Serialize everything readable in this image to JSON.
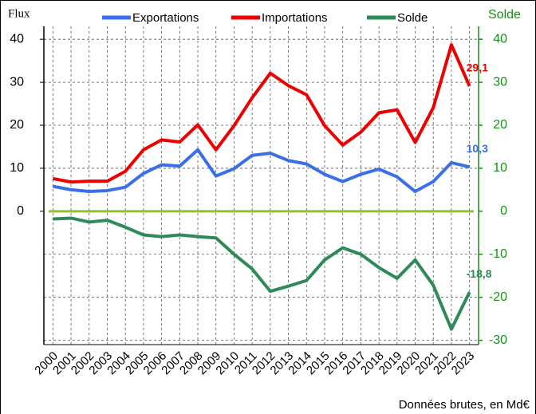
{
  "chart_data": {
    "type": "line",
    "ylabel": "Flux",
    "y2label": "Solde",
    "note": "Données brutes, en Md€",
    "categories": [
      "2000",
      "2001",
      "2002",
      "2003",
      "2004",
      "2005",
      "2006",
      "2007",
      "2008",
      "2009",
      "2010",
      "2011",
      "2012",
      "2013",
      "2014",
      "2015",
      "2016",
      "2017",
      "2018",
      "2019",
      "2020",
      "2021",
      "2022",
      "2023"
    ],
    "series": [
      {
        "name": "Exportations",
        "color": "#3b6fe8",
        "values": [
          5.8,
          5.0,
          4.6,
          4.8,
          5.6,
          8.8,
          10.8,
          10.5,
          14.3,
          8.2,
          9.9,
          13.0,
          13.5,
          11.8,
          11.0,
          8.6,
          6.9,
          8.6,
          9.8,
          8.0,
          4.6,
          6.9,
          11.3,
          10.3
        ],
        "value_labels": [
          null,
          null,
          null,
          null,
          null,
          null,
          null,
          null,
          null,
          null,
          null,
          null,
          null,
          null,
          null,
          null,
          null,
          null,
          null,
          null,
          null,
          null,
          null,
          "10,3"
        ]
      },
      {
        "name": "Importations",
        "color": "#ee0000",
        "values": [
          7.6,
          6.8,
          7.0,
          7.0,
          9.3,
          14.3,
          16.6,
          16.1,
          20.1,
          14.3,
          19.9,
          26.4,
          32.1,
          29.2,
          27.1,
          19.9,
          15.4,
          18.4,
          22.9,
          23.6,
          16.0,
          24.1,
          38.7,
          29.1
        ],
        "value_labels": [
          null,
          null,
          null,
          null,
          null,
          null,
          null,
          null,
          null,
          null,
          null,
          null,
          null,
          null,
          null,
          null,
          null,
          null,
          null,
          null,
          null,
          null,
          null,
          "29,1"
        ]
      },
      {
        "name": "Solde",
        "color": "#2e8b57",
        "axis": "y2",
        "values": [
          -1.8,
          -1.6,
          -2.5,
          -2.1,
          -3.7,
          -5.5,
          -5.9,
          -5.5,
          -5.9,
          -6.2,
          -10.0,
          -13.4,
          -18.6,
          -17.4,
          -16.1,
          -11.3,
          -8.5,
          -10.0,
          -13.1,
          -15.6,
          -11.3,
          -17.2,
          -27.4,
          -18.8
        ],
        "value_labels": [
          null,
          null,
          null,
          null,
          null,
          null,
          null,
          null,
          null,
          null,
          null,
          null,
          null,
          null,
          null,
          null,
          null,
          null,
          null,
          null,
          null,
          null,
          null,
          "-18,8"
        ]
      }
    ],
    "ylim": [
      -31,
      43
    ],
    "yticks": [
      0,
      10,
      20,
      30,
      40
    ],
    "y2lim": [
      -31,
      43
    ],
    "y2ticks": [
      -30,
      -20,
      -10,
      0,
      10,
      20,
      30,
      40
    ],
    "y2_color": "#1a8c1a",
    "zero_line_color": "#8fc31f",
    "grid": true
  }
}
